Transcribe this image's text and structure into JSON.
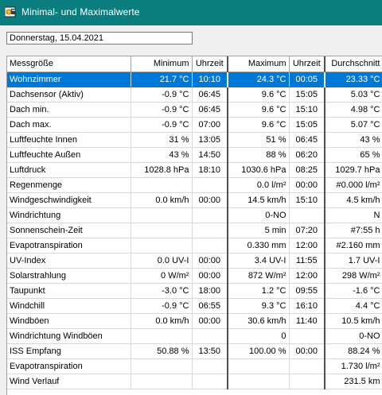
{
  "window": {
    "title": "Minimal- und Maximalwerte",
    "icon": "weather-app-icon"
  },
  "date": "Donnerstag, 15.04.2021",
  "columns": [
    "Messgröße",
    "Minimum",
    "Uhrzeit",
    "Maximum",
    "Uhrzeit",
    "Durchschnitt"
  ],
  "selected_row": 0,
  "rows": [
    [
      "Wohnzimmer",
      "21.7 °C",
      "10:10",
      "24.3 °C",
      "00:05",
      "23.33 °C"
    ],
    [
      "Dachsensor (Aktiv)",
      "-0.9 °C",
      "06:45",
      "9.6 °C",
      "15:05",
      "5.03 °C"
    ],
    [
      "Dach min.",
      "-0.9 °C",
      "06:45",
      "9.6 °C",
      "15:10",
      "4.98 °C"
    ],
    [
      "Dach max.",
      "-0.9 °C",
      "07:00",
      "9.6 °C",
      "15:05",
      "5.07 °C"
    ],
    [
      "Luftfeuchte Innen",
      "31 %",
      "13:05",
      "51 %",
      "06:45",
      "43 %"
    ],
    [
      "Luftfeuchte Außen",
      "43 %",
      "14:50",
      "88 %",
      "06:20",
      "65 %"
    ],
    [
      "Luftdruck",
      "1028.8 hPa",
      "18:10",
      "1030.6 hPa",
      "08:25",
      "1029.7 hPa"
    ],
    [
      "Regenmenge",
      "",
      "",
      "0.0 l/m²",
      "00:00",
      "#0.000 l/m²"
    ],
    [
      "Windgeschwindigkeit",
      "0.0 km/h",
      "00:00",
      "14.5 km/h",
      "15:10",
      "4.5 km/h"
    ],
    [
      "Windrichtung",
      "",
      "",
      "0-NO",
      "",
      "N"
    ],
    [
      "Sonnenschein-Zeit",
      "",
      "",
      "5 min",
      "07:20",
      "#7:55 h"
    ],
    [
      "Evapotranspiration",
      "",
      "",
      "0.330 mm",
      "12:00",
      "#2.160 mm"
    ],
    [
      "UV-Index",
      "0.0 UV-I",
      "00:00",
      "3.4 UV-I",
      "11:55",
      "1.7 UV-I"
    ],
    [
      "Solarstrahlung",
      "0 W/m²",
      "00:00",
      "872 W/m²",
      "12:00",
      "298 W/m²"
    ],
    [
      "Taupunkt",
      "-3.0 °C",
      "18:00",
      "1.2 °C",
      "09:55",
      "-1.6 °C"
    ],
    [
      "Windchill",
      "-0.9 °C",
      "06:55",
      "9.3 °C",
      "16:10",
      "4.4 °C"
    ],
    [
      "Windböen",
      "0.0 km/h",
      "00:00",
      "30.6 km/h",
      "11:40",
      "10.5 km/h"
    ],
    [
      "Windrichtung Windböen",
      "",
      "",
      "0",
      "",
      "0-NO"
    ],
    [
      "ISS Empfang",
      "50.88 %",
      "13:50",
      "100.00 %",
      "00:00",
      "88.24 %"
    ],
    [
      "Evapotranspiration",
      "",
      "",
      "",
      "",
      "1.730 l/m²"
    ],
    [
      "Wind Verlauf",
      "",
      "",
      "",
      "",
      "231.5 km"
    ]
  ]
}
